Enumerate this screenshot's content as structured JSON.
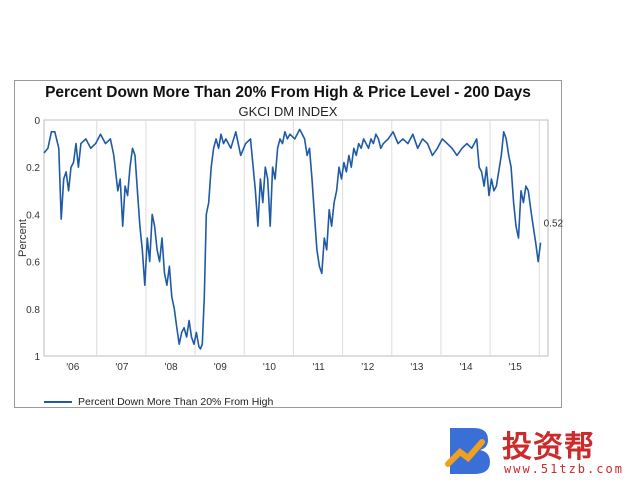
{
  "chart_data": {
    "type": "line",
    "title": "Percent Down More Than 20% From High & Price Level - 200 Days",
    "subtitle": "GKCI DM INDEX",
    "xlabel": "",
    "ylabel": "Percent",
    "xlim": [
      2005.7,
      2015.95
    ],
    "ylim": [
      0,
      1
    ],
    "y_inverted": true,
    "x_tick_labels": [
      "'06",
      "'07",
      "'08",
      "'09",
      "'10",
      "'11",
      "'12",
      "'13",
      "'14",
      "'15"
    ],
    "x_tick_positions": [
      2006,
      2007,
      2008,
      2009,
      2010,
      2011,
      2012,
      2013,
      2014,
      2015
    ],
    "y_ticks": [
      0,
      0.2,
      0.4,
      0.6,
      0.8,
      1
    ],
    "y_tick_labels": [
      "0",
      "0.2",
      "0.4",
      "0.6",
      "0.8",
      "1"
    ],
    "grid": "vertical",
    "legend_position": "bottom-left",
    "last_value_label": "0.52",
    "series": [
      {
        "name": "Percent Down More Than 20% From High",
        "color": "#1f5aa6",
        "x": [
          2005.7,
          2005.78,
          2005.85,
          2005.92,
          2006.0,
          2006.05,
          2006.1,
          2006.15,
          2006.2,
          2006.25,
          2006.3,
          2006.35,
          2006.4,
          2006.45,
          2006.55,
          2006.65,
          2006.75,
          2006.85,
          2006.95,
          2007.05,
          2007.12,
          2007.2,
          2007.25,
          2007.3,
          2007.35,
          2007.4,
          2007.45,
          2007.5,
          2007.55,
          2007.6,
          2007.65,
          2007.7,
          2007.75,
          2007.8,
          2007.85,
          2007.9,
          2007.95,
          2008.0,
          2008.05,
          2008.1,
          2008.15,
          2008.2,
          2008.25,
          2008.3,
          2008.35,
          2008.4,
          2008.45,
          2008.5,
          2008.55,
          2008.6,
          2008.65,
          2008.7,
          2008.75,
          2008.8,
          2008.85,
          2008.88,
          2008.92,
          2008.96,
          2009.0,
          2009.05,
          2009.1,
          2009.15,
          2009.2,
          2009.25,
          2009.3,
          2009.35,
          2009.4,
          2009.5,
          2009.6,
          2009.7,
          2009.8,
          2009.9,
          2010.0,
          2010.05,
          2010.1,
          2010.15,
          2010.2,
          2010.25,
          2010.3,
          2010.35,
          2010.4,
          2010.45,
          2010.5,
          2010.55,
          2010.6,
          2010.65,
          2010.7,
          2010.8,
          2010.9,
          2011.0,
          2011.05,
          2011.1,
          2011.15,
          2011.2,
          2011.25,
          2011.3,
          2011.35,
          2011.4,
          2011.45,
          2011.5,
          2011.55,
          2011.6,
          2011.65,
          2011.7,
          2011.75,
          2011.8,
          2011.85,
          2011.9,
          2011.95,
          2012.0,
          2012.05,
          2012.1,
          2012.15,
          2012.2,
          2012.25,
          2012.3,
          2012.35,
          2012.4,
          2012.45,
          2012.5,
          2012.55,
          2012.6,
          2012.7,
          2012.8,
          2012.9,
          2013.0,
          2013.1,
          2013.2,
          2013.3,
          2013.4,
          2013.5,
          2013.6,
          2013.7,
          2013.8,
          2013.9,
          2014.0,
          2014.1,
          2014.2,
          2014.3,
          2014.4,
          2014.5,
          2014.55,
          2014.6,
          2014.65,
          2014.7,
          2014.75,
          2014.8,
          2014.85,
          2014.9,
          2015.0,
          2015.05,
          2015.1,
          2015.15,
          2015.2,
          2015.25,
          2015.3,
          2015.35,
          2015.4,
          2015.45,
          2015.5,
          2015.55,
          2015.6,
          2015.65,
          2015.7,
          2015.75,
          2015.8
        ],
        "values": [
          0.14,
          0.12,
          0.05,
          0.05,
          0.12,
          0.42,
          0.25,
          0.22,
          0.3,
          0.2,
          0.18,
          0.1,
          0.2,
          0.1,
          0.08,
          0.12,
          0.1,
          0.06,
          0.1,
          0.08,
          0.15,
          0.3,
          0.25,
          0.45,
          0.28,
          0.32,
          0.2,
          0.12,
          0.15,
          0.3,
          0.45,
          0.55,
          0.7,
          0.5,
          0.6,
          0.4,
          0.45,
          0.55,
          0.6,
          0.5,
          0.65,
          0.7,
          0.62,
          0.75,
          0.8,
          0.88,
          0.95,
          0.9,
          0.88,
          0.92,
          0.85,
          0.92,
          0.95,
          0.9,
          0.96,
          0.97,
          0.95,
          0.75,
          0.4,
          0.35,
          0.2,
          0.12,
          0.08,
          0.12,
          0.06,
          0.1,
          0.08,
          0.12,
          0.05,
          0.15,
          0.1,
          0.08,
          0.3,
          0.45,
          0.25,
          0.35,
          0.2,
          0.25,
          0.45,
          0.2,
          0.25,
          0.12,
          0.08,
          0.1,
          0.05,
          0.08,
          0.06,
          0.08,
          0.04,
          0.08,
          0.15,
          0.12,
          0.25,
          0.4,
          0.55,
          0.62,
          0.65,
          0.5,
          0.55,
          0.38,
          0.45,
          0.35,
          0.3,
          0.2,
          0.25,
          0.18,
          0.22,
          0.15,
          0.2,
          0.12,
          0.15,
          0.1,
          0.12,
          0.08,
          0.1,
          0.12,
          0.08,
          0.1,
          0.06,
          0.08,
          0.12,
          0.1,
          0.08,
          0.05,
          0.1,
          0.08,
          0.1,
          0.06,
          0.12,
          0.08,
          0.1,
          0.15,
          0.12,
          0.08,
          0.1,
          0.12,
          0.15,
          0.12,
          0.1,
          0.12,
          0.08,
          0.2,
          0.22,
          0.28,
          0.2,
          0.32,
          0.25,
          0.3,
          0.28,
          0.15,
          0.05,
          0.08,
          0.15,
          0.2,
          0.35,
          0.45,
          0.5,
          0.3,
          0.35,
          0.28,
          0.3,
          0.38,
          0.45,
          0.52,
          0.6,
          0.52
        ]
      }
    ]
  },
  "watermark": {
    "brand": "投资帮",
    "url": "www.51tzb.com",
    "colors": {
      "orange": "#f0a020",
      "blue": "#3a6fd8",
      "red": "#cc2b2b"
    }
  }
}
